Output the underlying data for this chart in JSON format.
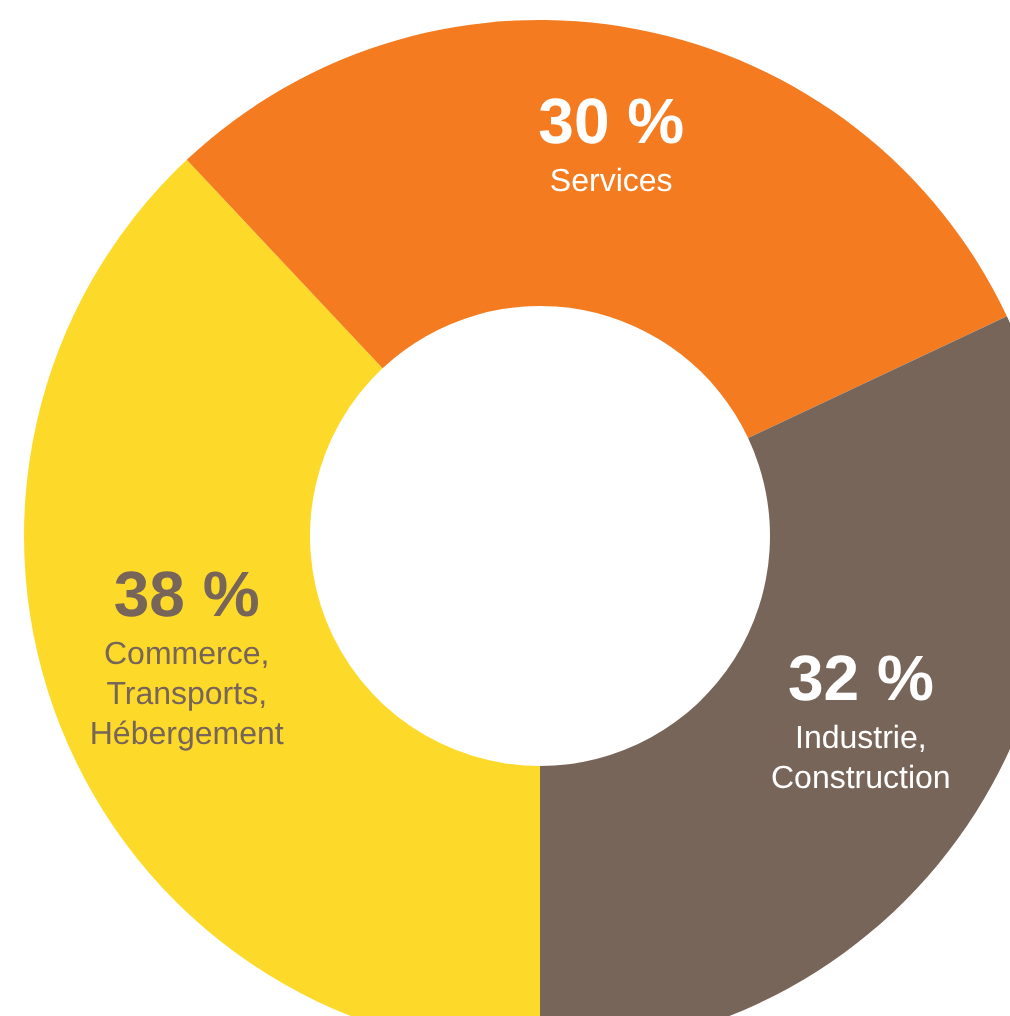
{
  "chart_data": {
    "type": "donut",
    "categories": [
      "Commerce, Transports, Hébergement",
      "Services",
      "Industrie, Construction"
    ],
    "values": [
      38,
      30,
      32
    ],
    "colors": [
      "#fdd92a",
      "#f47b20",
      "#77655a"
    ],
    "value_labels": [
      "38 %",
      "30 %",
      "32 %"
    ]
  }
}
